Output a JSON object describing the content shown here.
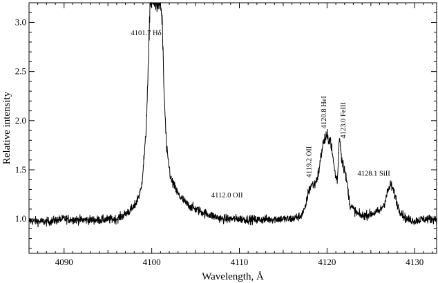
{
  "chart_data": {
    "type": "line",
    "xlabel": "Wavelength, Å",
    "ylabel": "Relative intensity",
    "xlim": [
      4086,
      4132.5
    ],
    "ylim": [
      0.65,
      3.2
    ],
    "x_ticks": [
      4090,
      4100,
      4110,
      4120,
      4130
    ],
    "y_ticks": [
      1.0,
      1.5,
      2.0,
      2.5,
      3.0
    ],
    "grid": false,
    "series": [
      {
        "x": [
          4086,
          4088,
          4090,
          4092,
          4094,
          4096,
          4097,
          4098,
          4098.8,
          4099.3,
          4099.6,
          4099.8,
          4100.0,
          4100.5,
          4101.0,
          4101.2,
          4101.4,
          4101.7,
          4102.2,
          4103,
          4104,
          4105,
          4106,
          4107,
          4108,
          4110,
          4112,
          4114,
          4116,
          4117,
          4117.5,
          4117.8,
          4118.2,
          4118.6,
          4119.0,
          4119.5,
          4119.8,
          4120.1,
          4120.4,
          4120.7,
          4121.0,
          4121.2,
          4121.4,
          4121.7,
          4122.0,
          4122.3,
          4122.6,
          4123.0,
          4123.5,
          4124,
          4125,
          4126,
          4126.5,
          4127,
          4127.3,
          4127.7,
          4128.2,
          4129,
          4130,
          4131,
          4132.5
        ],
        "y": [
          0.98,
          0.97,
          1.0,
          0.99,
          0.99,
          1.0,
          1.05,
          1.12,
          1.3,
          1.8,
          2.5,
          3.2,
          3.2,
          3.2,
          3.2,
          3.0,
          2.3,
          1.7,
          1.4,
          1.25,
          1.15,
          1.1,
          1.06,
          1.03,
          1.0,
          1.0,
          0.99,
          1.0,
          1.0,
          1.03,
          1.1,
          1.25,
          1.35,
          1.35,
          1.45,
          1.75,
          1.82,
          1.83,
          1.8,
          1.6,
          1.42,
          1.4,
          1.85,
          1.6,
          1.5,
          1.35,
          1.15,
          1.1,
          1.05,
          1.03,
          1.05,
          1.08,
          1.15,
          1.3,
          1.35,
          1.25,
          1.1,
          1.0,
          0.98,
          1.0,
          1.0
        ]
      }
    ],
    "annotations": [
      {
        "text": "4101.7 Hδ",
        "x": 4101.1,
        "y": 2.87,
        "rotate": false
      },
      {
        "text": "4112.0 OII",
        "x": 4110.4,
        "y": 1.22,
        "rotate": false
      },
      {
        "text": "4119.2 OII",
        "x": 4118.2,
        "y": 1.42,
        "rotate": true
      },
      {
        "text": "4120.8 HeI",
        "x": 4119.9,
        "y": 1.92,
        "rotate": true
      },
      {
        "text": "4123.0 FeIII",
        "x": 4122.1,
        "y": 1.82,
        "rotate": true
      },
      {
        "text": "4128.1 SiII",
        "x": 4127.2,
        "y": 1.44,
        "rotate": false
      }
    ]
  }
}
